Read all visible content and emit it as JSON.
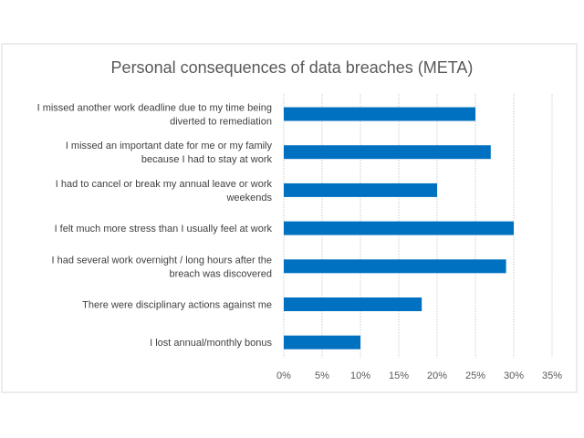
{
  "chart_data": {
    "type": "bar",
    "orientation": "horizontal",
    "title": "Personal consequences of data breaches (META)",
    "xlabel": "",
    "ylabel": "",
    "categories": [
      [
        "I missed another work deadline due to my time being",
        "diverted to remediation"
      ],
      [
        "I missed an important date for me or my family",
        "because I had to stay at work"
      ],
      [
        "I had to cancel or break my annual leave or work",
        "weekends"
      ],
      [
        "I felt much more stress than I usually feel at work"
      ],
      [
        "I had several work overnight / long hours after the",
        "breach was discovered"
      ],
      [
        "There were disciplinary actions against me"
      ],
      [
        "I lost annual/monthly bonus"
      ]
    ],
    "values": [
      25,
      27,
      20,
      30,
      29,
      18,
      10
    ],
    "xlim": [
      0,
      35
    ],
    "xticks": [
      0,
      5,
      10,
      15,
      20,
      25,
      30,
      35
    ],
    "tick_labels": [
      "0%",
      "5%",
      "10%",
      "15%",
      "20%",
      "25%",
      "30%",
      "35%"
    ],
    "grid": true,
    "legend": "none",
    "bar_color": "#0070C0"
  }
}
